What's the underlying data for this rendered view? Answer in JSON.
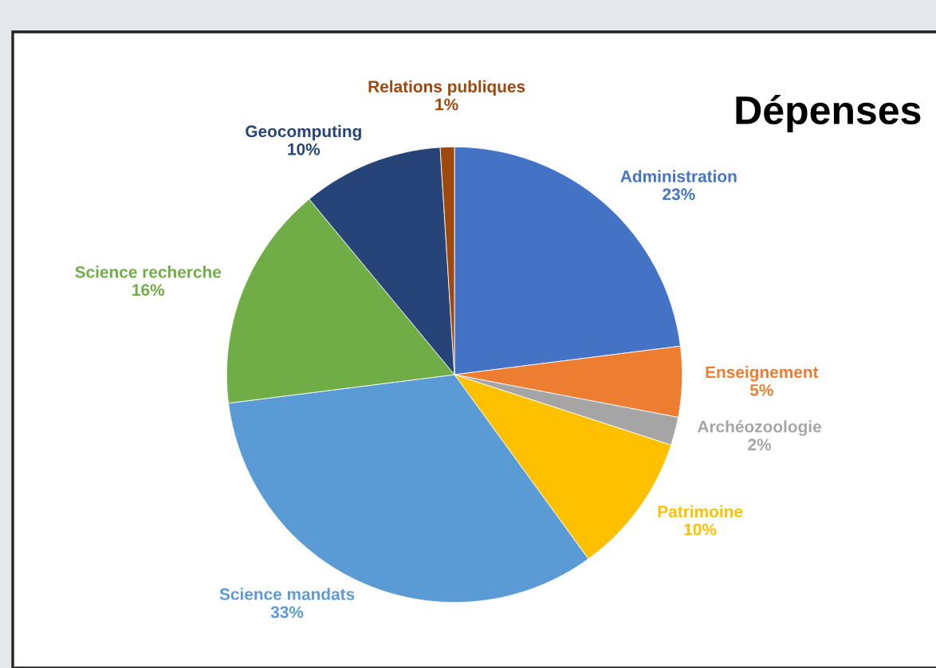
{
  "chart_data": {
    "type": "pie",
    "title": "Dépenses",
    "categories": [
      "Administration",
      "Enseignement",
      "Archéozoologie",
      "Patrimoine",
      "Science mandats",
      "Science recherche",
      "Geocomputing",
      "Relations publiques"
    ],
    "values": [
      23,
      5,
      2,
      10,
      33,
      16,
      10,
      1
    ],
    "value_labels": [
      "23%",
      "5%",
      "2%",
      "10%",
      "33%",
      "16%",
      "10%",
      "1%"
    ],
    "colors": [
      "#4472c4",
      "#ed7d31",
      "#a5a5a5",
      "#ffc000",
      "#5b9bd5",
      "#70ad47",
      "#264478",
      "#9e480e"
    ],
    "legend": false
  }
}
